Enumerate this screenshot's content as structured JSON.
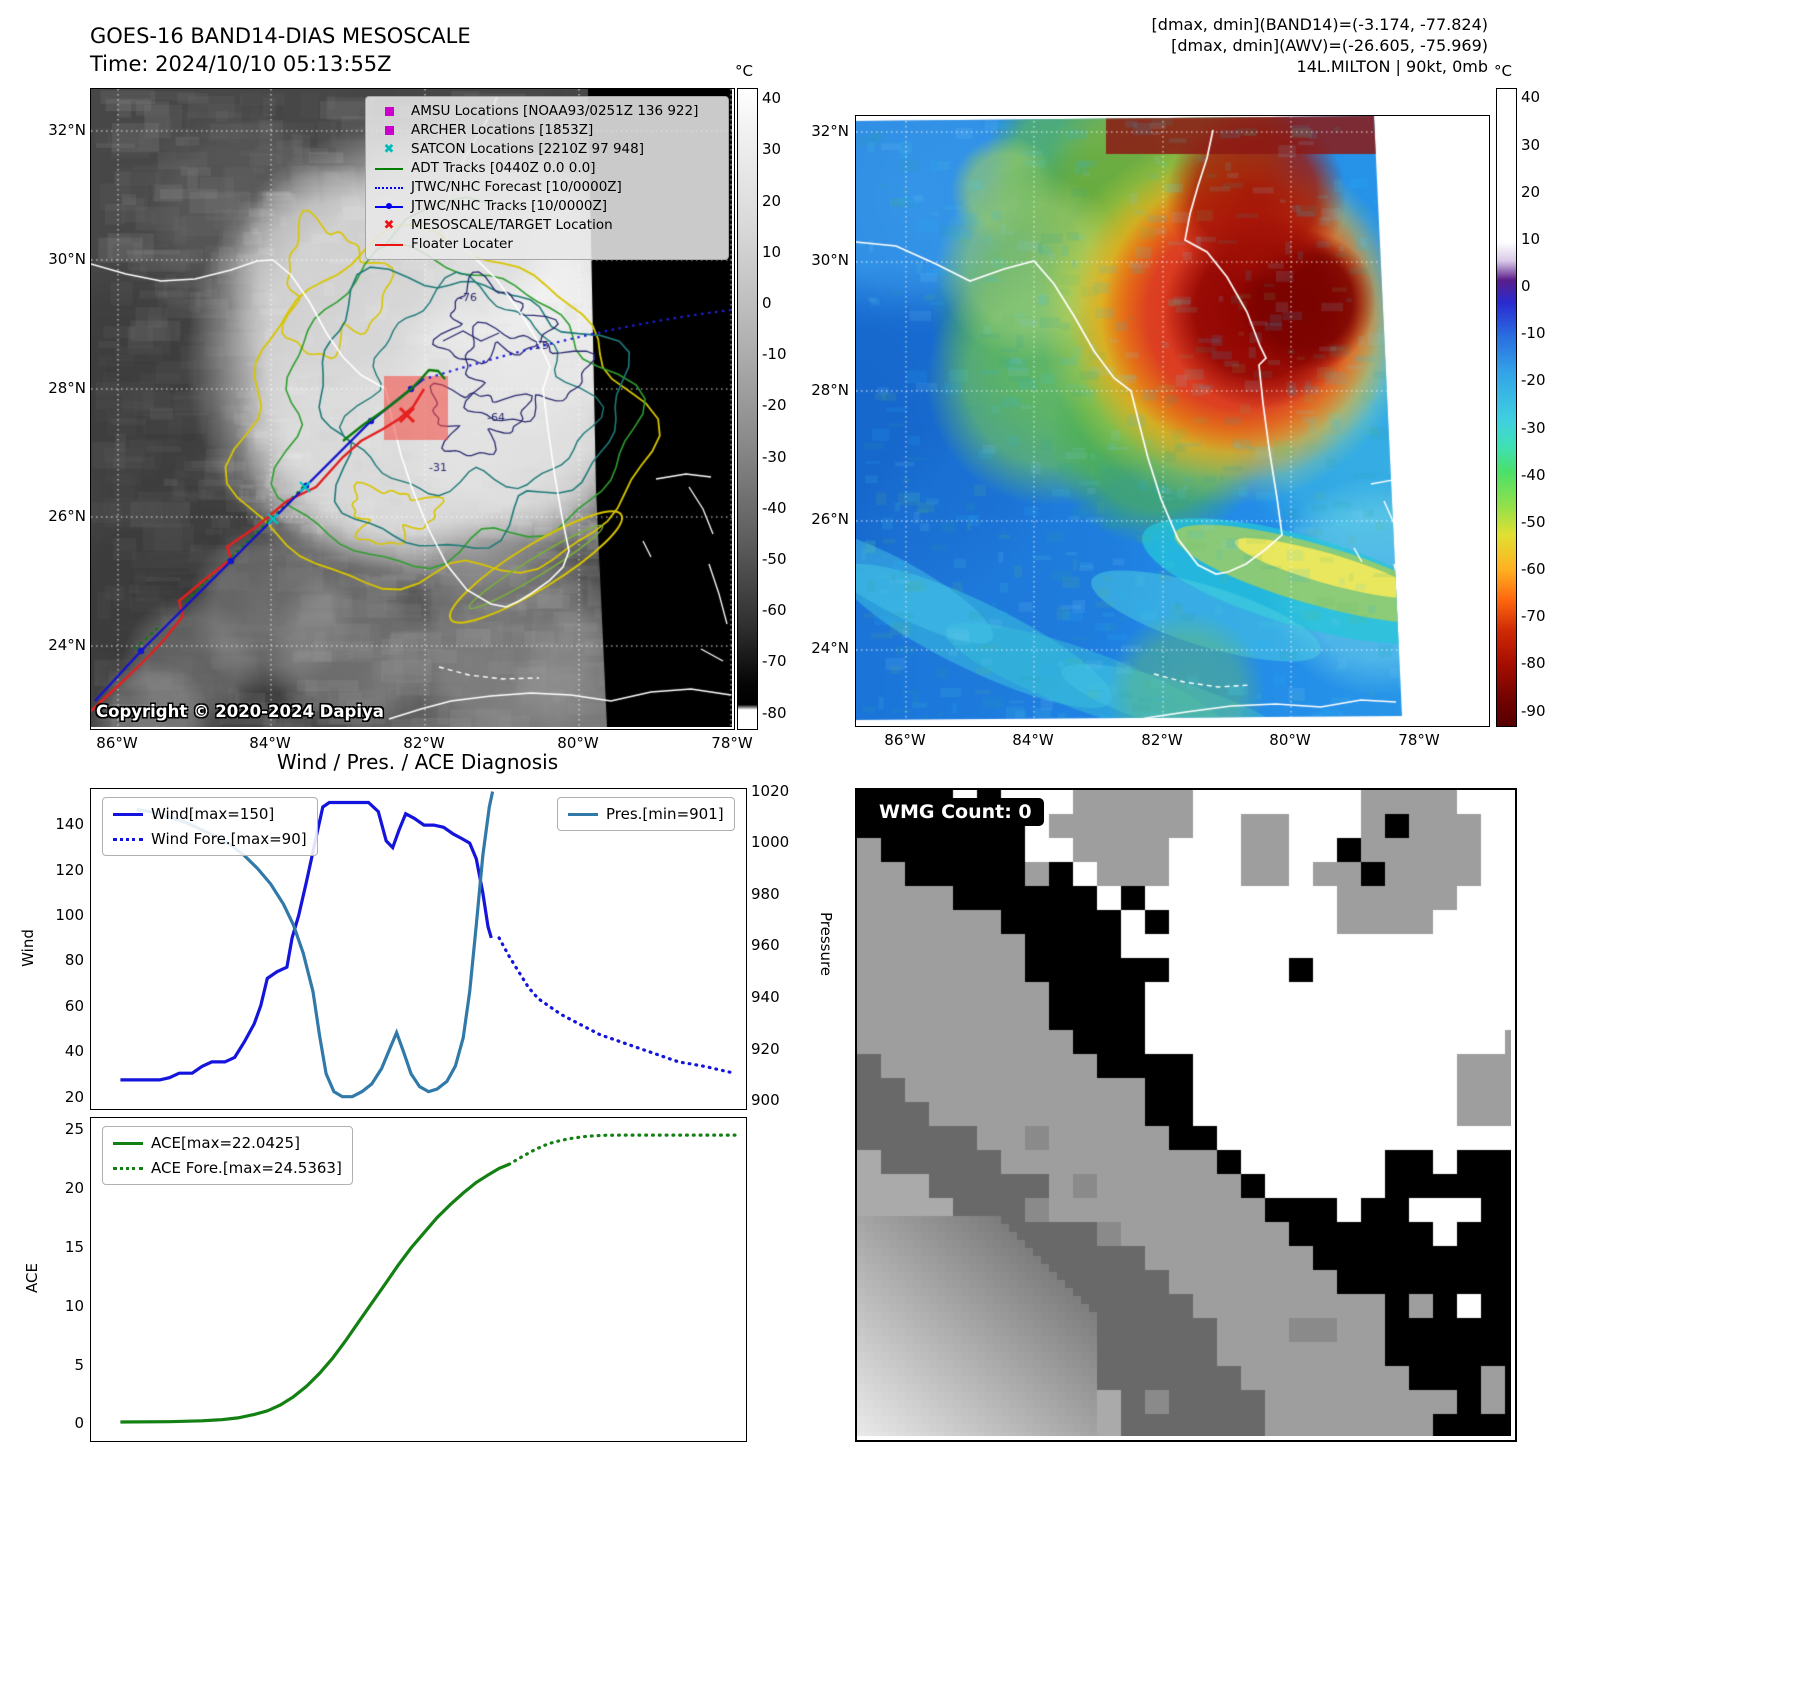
{
  "panel_band14": {
    "title": "GOES-16 BAND14-DIAS MESOSCALE",
    "time_label": "Time: 2024/10/10 05:13:55Z",
    "copyright": "Copyright © 2020-2024 Dapiya",
    "colorbar_unit": "°C",
    "colorbar_ticks": [
      40,
      30,
      20,
      10,
      0,
      -10,
      -20,
      -30,
      -40,
      -50,
      -60,
      -70,
      -80
    ],
    "lat_ticks": [
      "32°N",
      "30°N",
      "28°N",
      "26°N",
      "24°N"
    ],
    "lon_ticks": [
      "86°W",
      "84°W",
      "82°W",
      "80°W",
      "78°W"
    ],
    "contour_labels": [
      "-76",
      "-64",
      "-31",
      "55"
    ],
    "legend": [
      {
        "label": "AMSU Locations [NOAA93/0251Z 136 922]",
        "marker": "square",
        "color": "#cc00cc"
      },
      {
        "label": "ARCHER Locations [1853Z]",
        "marker": "square",
        "color": "#cc00cc"
      },
      {
        "label": "SATCON Locations [2210Z 97 948]",
        "marker": "x",
        "color": "#00bbbb"
      },
      {
        "label": "ADT Tracks [0440Z 0.0 0.0]",
        "marker": "line",
        "color": "#008000"
      },
      {
        "label": "JTWC/NHC Forecast [10/0000Z]",
        "marker": "dotted",
        "color": "#0000ee"
      },
      {
        "label": "JTWC/NHC Tracks [10/0000Z]",
        "marker": "line-dot",
        "color": "#0000ee"
      },
      {
        "label": "MESOSCALE/TARGET Location",
        "marker": "x",
        "color": "#ee1111"
      },
      {
        "label": "Floater Locater",
        "marker": "line",
        "color": "#ee1111"
      }
    ]
  },
  "panel_awv": {
    "header_line1": "[dmax, dmin](BAND14)=(-3.174, -77.824)",
    "header_line2": "[dmax, dmin](AWV)=(-26.605, -75.969)",
    "header_line3": "14L.MILTON | 90kt, 0mb",
    "colorbar_unit": "°C",
    "colorbar_ticks": [
      40,
      30,
      20,
      10,
      0,
      -10,
      -20,
      -30,
      -40,
      -50,
      -60,
      -70,
      -80,
      -90
    ],
    "lat_ticks": [
      "32°N",
      "30°N",
      "28°N",
      "26°N",
      "24°N"
    ],
    "lon_ticks": [
      "86°W",
      "84°W",
      "82°W",
      "80°W",
      "78°W"
    ]
  },
  "diagnosis": {
    "title": "Wind / Pres. / ACE Diagnosis",
    "wind_axis_label": "Wind",
    "pressure_axis_label": "Pressure",
    "ace_axis_label": "ACE",
    "legend_wind": "Wind[max=150]",
    "legend_wind_fore": "Wind Fore.[max=90]",
    "legend_pres": "Pres.[min=901]",
    "legend_ace": "ACE[max=22.0425]",
    "legend_ace_fore": "ACE Fore.[max=24.5363]"
  },
  "panel_wmg": {
    "label": "WMG Count: 0"
  },
  "chart_data": [
    {
      "type": "line",
      "title": "Wind / Pres. / ACE Diagnosis",
      "ylabel_left": "Wind",
      "ylabel_right": "Pressure",
      "ylim_left": [
        15,
        156
      ],
      "ylim_right": [
        897,
        1021
      ],
      "yticks_left": [
        20,
        40,
        60,
        80,
        100,
        120,
        140
      ],
      "yticks_right": [
        900,
        920,
        940,
        960,
        980,
        1000,
        1020
      ],
      "grid": false,
      "legend_position": "upper left / upper right",
      "series": [
        {
          "name": "Wind[max=150]",
          "color": "#1414dc",
          "style": "solid",
          "axis": "left",
          "points": [
            [
              0.045,
              27
            ],
            [
              0.09,
              27
            ],
            [
              0.105,
              27
            ],
            [
              0.12,
              28
            ],
            [
              0.135,
              30
            ],
            [
              0.155,
              30
            ],
            [
              0.17,
              33
            ],
            [
              0.185,
              35
            ],
            [
              0.205,
              35
            ],
            [
              0.22,
              37
            ],
            [
              0.235,
              44
            ],
            [
              0.25,
              52
            ],
            [
              0.26,
              60
            ],
            [
              0.27,
              72
            ],
            [
              0.285,
              75
            ],
            [
              0.3,
              77
            ],
            [
              0.308,
              90
            ],
            [
              0.318,
              100
            ],
            [
              0.33,
              115
            ],
            [
              0.345,
              135
            ],
            [
              0.355,
              148
            ],
            [
              0.365,
              150
            ],
            [
              0.385,
              150
            ],
            [
              0.405,
              150
            ],
            [
              0.425,
              150
            ],
            [
              0.44,
              146
            ],
            [
              0.452,
              133
            ],
            [
              0.462,
              130
            ],
            [
              0.472,
              138
            ],
            [
              0.482,
              145
            ],
            [
              0.495,
              143
            ],
            [
              0.51,
              140
            ],
            [
              0.525,
              140
            ],
            [
              0.54,
              139
            ],
            [
              0.555,
              136
            ],
            [
              0.568,
              134
            ],
            [
              0.58,
              132
            ],
            [
              0.59,
              125
            ],
            [
              0.6,
              110
            ],
            [
              0.608,
              95
            ],
            [
              0.613,
              90
            ]
          ]
        },
        {
          "name": "Wind Fore.[max=90]",
          "color": "#1414dc",
          "style": "dotted",
          "axis": "left",
          "points": [
            [
              0.625,
              90
            ],
            [
              0.64,
              82
            ],
            [
              0.655,
              75
            ],
            [
              0.67,
              68
            ],
            [
              0.685,
              63
            ],
            [
              0.7,
              60
            ],
            [
              0.72,
              56
            ],
            [
              0.74,
              53
            ],
            [
              0.76,
              50
            ],
            [
              0.78,
              47
            ],
            [
              0.8,
              45
            ],
            [
              0.82,
              43
            ],
            [
              0.84,
              41
            ],
            [
              0.86,
              39
            ],
            [
              0.88,
              37
            ],
            [
              0.9,
              35
            ],
            [
              0.92,
              34
            ],
            [
              0.94,
              33
            ],
            [
              0.955,
              32
            ],
            [
              0.97,
              31
            ],
            [
              0.985,
              30
            ]
          ]
        },
        {
          "name": "Pres.[min=901]",
          "color": "#3079a8",
          "style": "solid",
          "axis": "right",
          "points": [
            [
              0.07,
              1013
            ],
            [
              0.095,
              1012
            ],
            [
              0.12,
              1010
            ],
            [
              0.145,
              1008
            ],
            [
              0.17,
              1005
            ],
            [
              0.195,
              1002
            ],
            [
              0.215,
              999
            ],
            [
              0.235,
              995
            ],
            [
              0.255,
              990
            ],
            [
              0.275,
              984
            ],
            [
              0.295,
              976
            ],
            [
              0.31,
              968
            ],
            [
              0.325,
              957
            ],
            [
              0.34,
              942
            ],
            [
              0.35,
              925
            ],
            [
              0.36,
              910
            ],
            [
              0.372,
              903
            ],
            [
              0.385,
              901
            ],
            [
              0.4,
              901
            ],
            [
              0.415,
              903
            ],
            [
              0.43,
              906
            ],
            [
              0.445,
              912
            ],
            [
              0.458,
              920
            ],
            [
              0.468,
              926
            ],
            [
              0.478,
              919
            ],
            [
              0.49,
              910
            ],
            [
              0.503,
              905
            ],
            [
              0.517,
              903
            ],
            [
              0.53,
              904
            ],
            [
              0.545,
              907
            ],
            [
              0.558,
              913
            ],
            [
              0.57,
              924
            ],
            [
              0.58,
              942
            ],
            [
              0.59,
              968
            ],
            [
              0.6,
              995
            ],
            [
              0.61,
              1014
            ],
            [
              0.615,
              1020
            ]
          ]
        }
      ]
    },
    {
      "type": "line",
      "ylabel_left": "ACE",
      "ylim_left": [
        -1.4,
        26
      ],
      "yticks_left": [
        0,
        5,
        10,
        15,
        20,
        25
      ],
      "grid": false,
      "legend_position": "upper left",
      "series": [
        {
          "name": "ACE[max=22.0425]",
          "color": "#128012",
          "style": "solid",
          "axis": "left",
          "points": [
            [
              0.045,
              0.05
            ],
            [
              0.12,
              0.08
            ],
            [
              0.17,
              0.15
            ],
            [
              0.2,
              0.25
            ],
            [
              0.225,
              0.4
            ],
            [
              0.25,
              0.7
            ],
            [
              0.27,
              1.0
            ],
            [
              0.29,
              1.5
            ],
            [
              0.31,
              2.2
            ],
            [
              0.33,
              3.1
            ],
            [
              0.35,
              4.2
            ],
            [
              0.37,
              5.5
            ],
            [
              0.39,
              7.0
            ],
            [
              0.41,
              8.6
            ],
            [
              0.43,
              10.2
            ],
            [
              0.45,
              11.8
            ],
            [
              0.47,
              13.4
            ],
            [
              0.49,
              14.9
            ],
            [
              0.51,
              16.2
            ],
            [
              0.53,
              17.5
            ],
            [
              0.55,
              18.6
            ],
            [
              0.57,
              19.6
            ],
            [
              0.59,
              20.5
            ],
            [
              0.61,
              21.2
            ],
            [
              0.625,
              21.7
            ],
            [
              0.64,
              22.04
            ]
          ]
        },
        {
          "name": "ACE Fore.[max=24.5363]",
          "color": "#128012",
          "style": "dotted",
          "axis": "left",
          "points": [
            [
              0.64,
              22.04
            ],
            [
              0.66,
              22.7
            ],
            [
              0.68,
              23.3
            ],
            [
              0.7,
              23.8
            ],
            [
              0.72,
              24.1
            ],
            [
              0.74,
              24.3
            ],
            [
              0.76,
              24.45
            ],
            [
              0.785,
              24.52
            ],
            [
              0.82,
              24.54
            ],
            [
              0.87,
              24.54
            ],
            [
              0.92,
              24.54
            ],
            [
              0.97,
              24.54
            ],
            [
              0.99,
              24.54
            ]
          ]
        }
      ]
    }
  ]
}
